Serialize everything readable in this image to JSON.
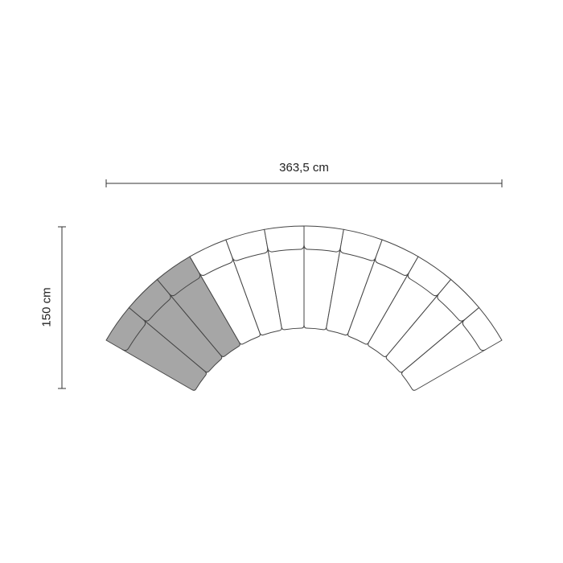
{
  "dimensions": {
    "width_label": "363,5 cm",
    "height_label": "150 cm"
  },
  "sofa": {
    "seat_count": 12,
    "highlighted_seats": 3,
    "colors": {
      "highlight": "#a6a6a6",
      "outline": "#444444",
      "seat": "#ffffff"
    }
  }
}
